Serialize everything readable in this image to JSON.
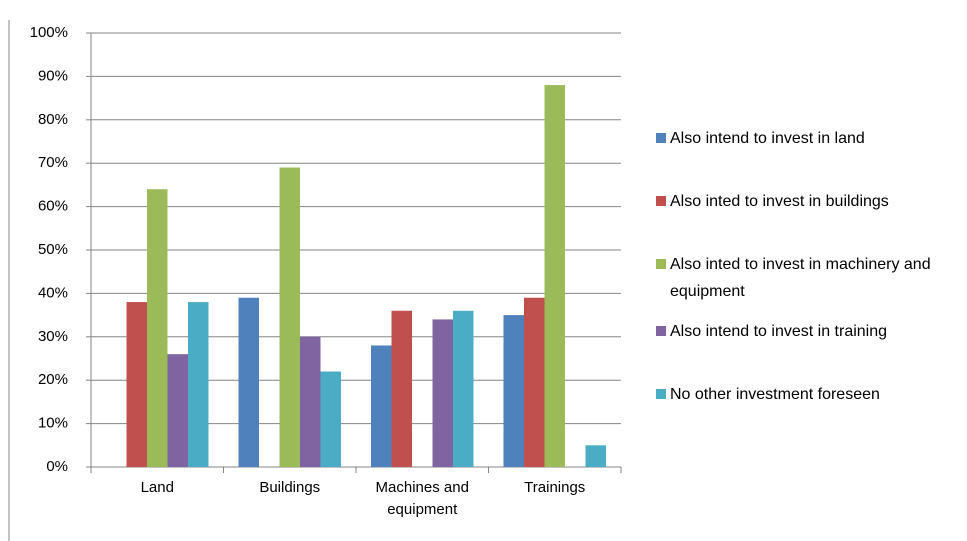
{
  "chart_data": {
    "type": "bar",
    "categories": [
      "Land",
      "Buildings",
      "Machines and equipment",
      "Trainings"
    ],
    "series": [
      {
        "name": "Also intend to invest in land",
        "color": "#4f81bd",
        "values": [
          null,
          39,
          28,
          35
        ]
      },
      {
        "name": "Also inted to invest in buildings",
        "color": "#c0504d",
        "values": [
          38,
          null,
          36,
          39
        ]
      },
      {
        "name": "Also inted to invest in machinery and equipment",
        "color": "#9bbb59",
        "values": [
          64,
          69,
          null,
          88
        ]
      },
      {
        "name": "Also intend to invest in training",
        "color": "#8064a2",
        "values": [
          26,
          30,
          34,
          null
        ]
      },
      {
        "name": "No other investment foreseen",
        "color": "#4bacc6",
        "values": [
          38,
          22,
          36,
          5
        ]
      }
    ],
    "ylim": [
      0,
      100
    ],
    "yticks": [
      {
        "value": 0,
        "label": "0%"
      },
      {
        "value": 10,
        "label": "10%"
      },
      {
        "value": 20,
        "label": "20%"
      },
      {
        "value": 30,
        "label": "30%"
      },
      {
        "value": 40,
        "label": "40%"
      },
      {
        "value": 50,
        "label": "50%"
      },
      {
        "value": 60,
        "label": "60%"
      },
      {
        "value": 70,
        "label": "70%"
      },
      {
        "value": 80,
        "label": "80%"
      },
      {
        "value": 90,
        "label": "90%"
      },
      {
        "value": 100,
        "label": "100%"
      }
    ],
    "grid": true,
    "legend": "right"
  }
}
